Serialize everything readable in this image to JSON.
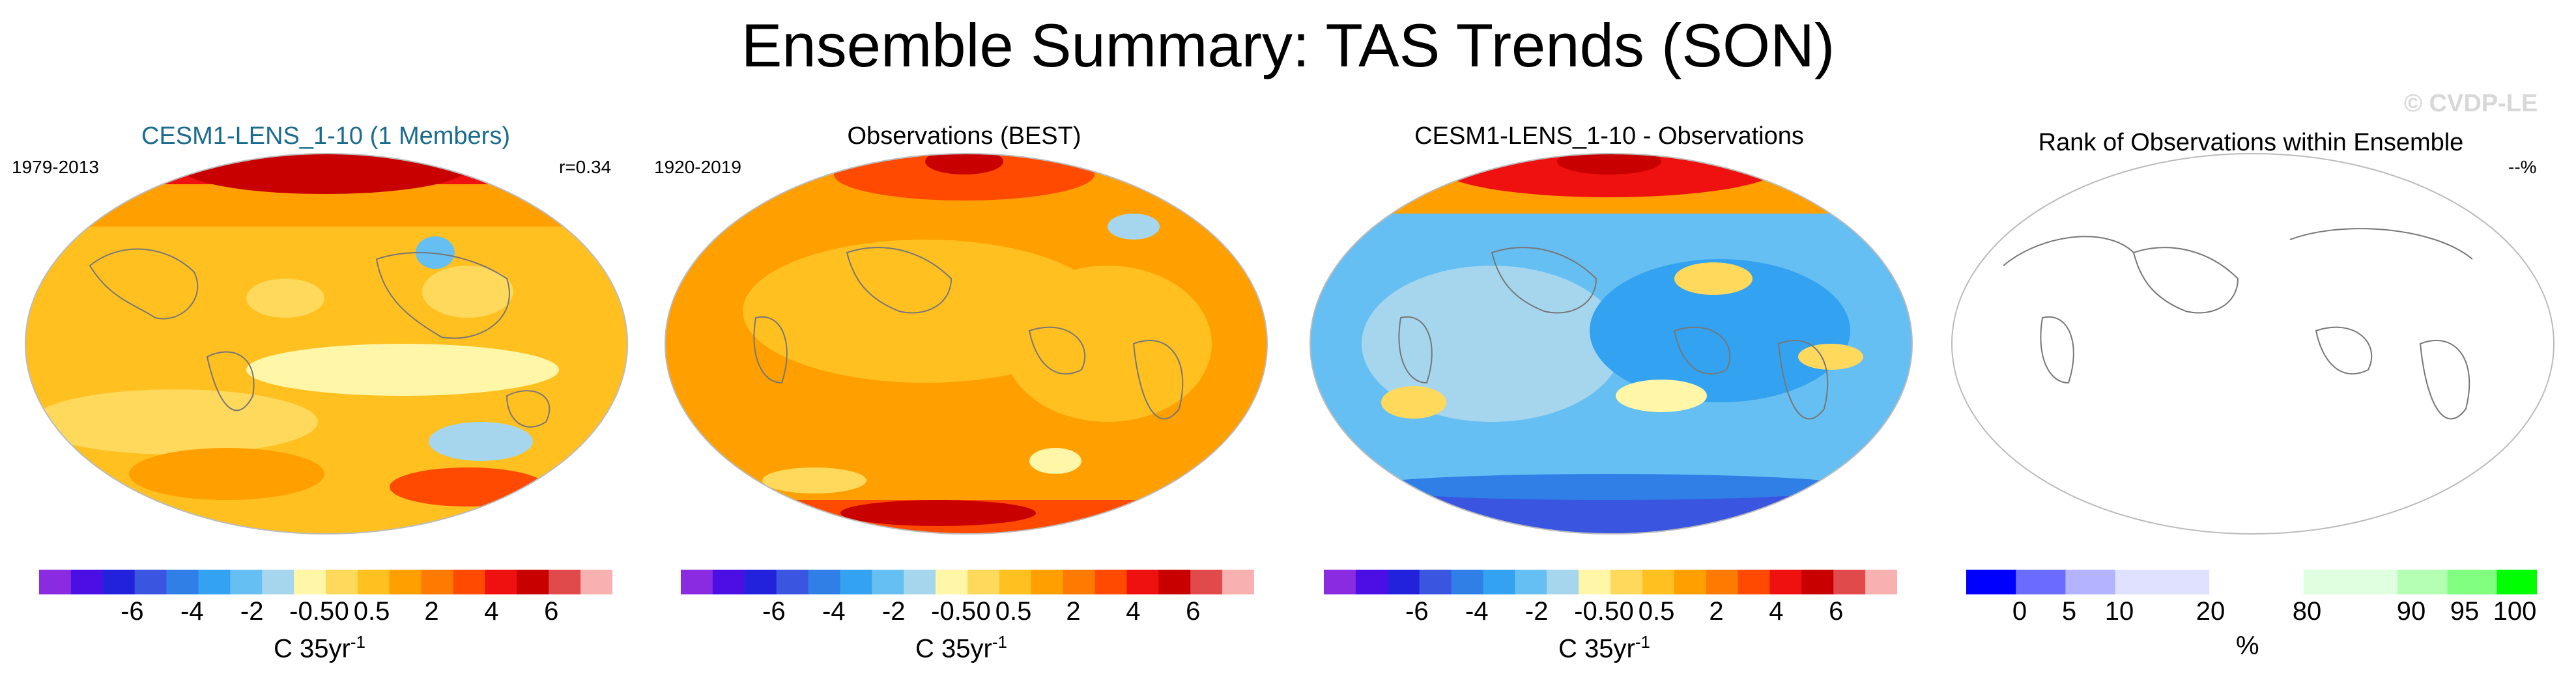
{
  "title": "Ensemble Summary: TAS Trends (SON)",
  "watermark": "© CVDP-LE",
  "panels": [
    {
      "title": "CESM1-LENS_1-10 (1 Members)",
      "title_color": "#1b6b8f",
      "left_label": "1979-2013",
      "right_label": "r=0.34",
      "map": "model"
    },
    {
      "title": "Observations (BEST)",
      "title_color": "#000000",
      "left_label": "1920-2019",
      "right_label": "",
      "map": "obs"
    },
    {
      "title": "CESM1-LENS_1-10 - Observations",
      "title_color": "#000000",
      "left_label": "",
      "right_label": "",
      "map": "diff"
    },
    {
      "title": "Rank of Observations within Ensemble",
      "title_color": "#000000",
      "left_label": "",
      "right_label": "--%",
      "map": "rank"
    }
  ],
  "trend_colorbar": {
    "colors": [
      "#8a2be2",
      "#4b0fe6",
      "#2222dd",
      "#3a55e0",
      "#2f7fe6",
      "#33a2f0",
      "#66bff2",
      "#a6d6ee",
      "#fff6a8",
      "#ffd95c",
      "#ffc020",
      "#ff9f00",
      "#ff7a00",
      "#ff4a00",
      "#ef1010",
      "#c80000",
      "#e04a4a",
      "#f8b0b0"
    ],
    "ticks": [
      "-6",
      "-4",
      "-2",
      "-0.5",
      "0",
      "0.5",
      "2",
      "4",
      "6"
    ],
    "unit": "C 35yr",
    "unit_sup": "-1"
  },
  "rank_colorbar": {
    "colors": [
      "#0000ff",
      "#6b6bff",
      "#b3b3ff",
      "#e0e0ff",
      "#ffffff",
      "#e0ffe0",
      "#b3ffb3",
      "#80ff80",
      "#00ff00"
    ],
    "ticks": [
      "0",
      "5",
      "10",
      "20",
      "80",
      "90",
      "95",
      "100"
    ],
    "unit": "%"
  }
}
